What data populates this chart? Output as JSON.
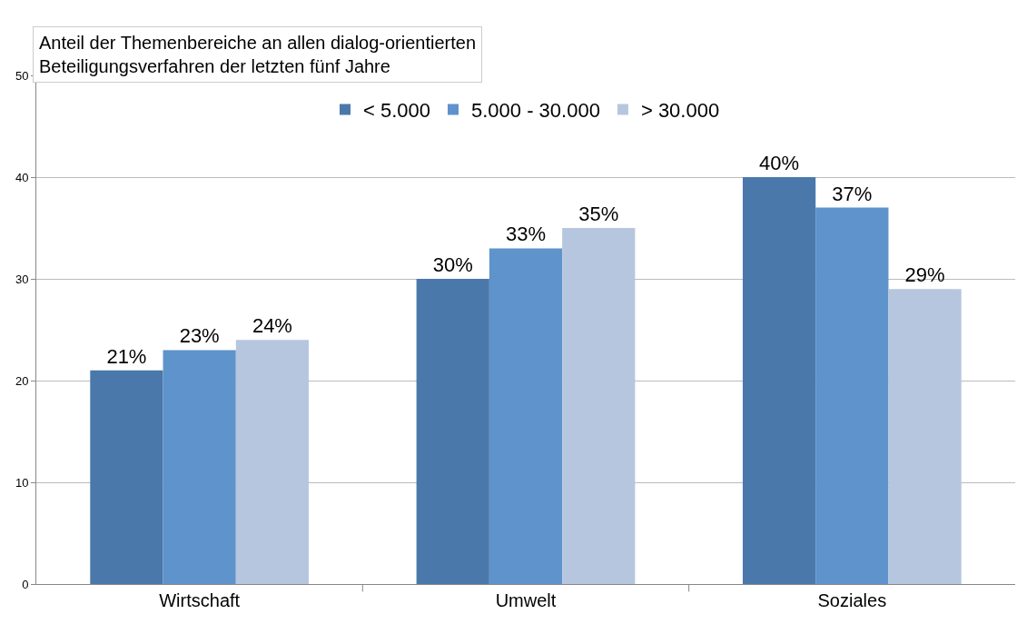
{
  "chart_data": {
    "type": "bar",
    "title": "Anteil der Themenbereiche an allen dialog-orientierten\nBeteiligungsverfahren der letzten fünf Jahre",
    "categories": [
      "Wirtschaft",
      "Umwelt",
      "Soziales"
    ],
    "series": [
      {
        "name": "< 5.000",
        "color": "#4a78ab",
        "values": [
          21,
          30,
          40
        ],
        "value_labels": [
          "21%",
          "30%",
          "40%"
        ]
      },
      {
        "name": "5.000 - 30.000",
        "color": "#5e93cb",
        "values": [
          23,
          33,
          37
        ],
        "value_labels": [
          "23%",
          "33%",
          "37%"
        ]
      },
      {
        "name": "> 30.000",
        "color": "#b7c6df",
        "values": [
          24,
          35,
          29
        ],
        "value_labels": [
          "24%",
          "35%",
          "29%"
        ]
      }
    ],
    "ylim": [
      0,
      50
    ],
    "yticks": [
      0,
      10,
      20,
      30,
      40,
      50
    ],
    "grid": "y",
    "legend": "top"
  }
}
